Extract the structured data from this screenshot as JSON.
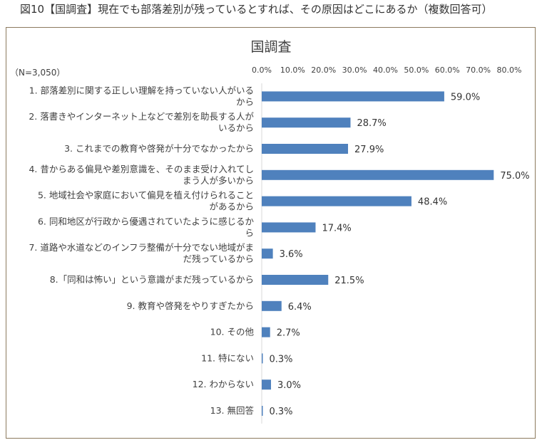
{
  "figure_title": "図10【国調査】現在でも部落差別が残っているとすれば、その原因はどこにあるか（複数回答可）",
  "chart_data": {
    "type": "bar",
    "orientation": "horizontal",
    "title": "国調査",
    "sample_note": "（N=3,050）",
    "xlim": [
      0,
      80
    ],
    "x_ticks": [
      "0.0%",
      "10.0%",
      "20.0%",
      "30.0%",
      "40.0%",
      "50.0%",
      "60.0%",
      "70.0%",
      "80.0%"
    ],
    "tick_values": [
      0,
      10,
      20,
      30,
      40,
      50,
      60,
      70,
      80
    ],
    "bar_color": "#4f81bd",
    "grid": false,
    "legend": "none",
    "categories": [
      [
        "1. 部落差別に関する正しい理解を持っていない人がいる",
        "から"
      ],
      [
        "2. 落書きやインターネット上などで差別を助長する人が",
        "いるから"
      ],
      [
        "3. これまでの教育や啓発が十分でなかったから"
      ],
      [
        "4. 昔からある偏見や差別意識を、そのまま受け入れてし",
        "まう人が多いから"
      ],
      [
        "5. 地域社会や家庭において偏見を植え付けられること",
        "があるから"
      ],
      [
        "6. 同和地区が行政から優遇されていたように感じるか",
        "ら"
      ],
      [
        "7. 道路や水道などのインフラ整備が十分でない地域がま",
        "だ残っているから"
      ],
      [
        "8.「同和は怖い」という意識がまだ残っているから"
      ],
      [
        "9. 教育や啓発をやりすぎたから"
      ],
      [
        "10. その他"
      ],
      [
        "11. 特にない"
      ],
      [
        "12. わからない"
      ],
      [
        "13. 無回答"
      ]
    ],
    "values": [
      59.0,
      28.7,
      27.9,
      75.0,
      48.4,
      17.4,
      3.6,
      21.5,
      6.4,
      2.7,
      0.3,
      3.0,
      0.3
    ],
    "value_labels": [
      "59.0%",
      "28.7%",
      "27.9%",
      "75.0%",
      "48.4%",
      "17.4%",
      "3.6%",
      "21.5%",
      "6.4%",
      "2.7%",
      "0.3%",
      "3.0%",
      "0.3%"
    ]
  }
}
